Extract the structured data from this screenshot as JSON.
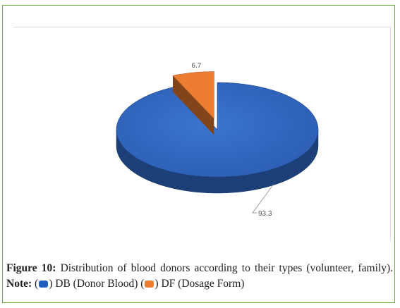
{
  "chart_data": {
    "type": "pie",
    "style": "3d",
    "categories": [
      "DB (Donor Blood)",
      "DF (Dosage Form)"
    ],
    "values": [
      93.3,
      6.7
    ],
    "data_labels": [
      "93.3",
      "6.7"
    ],
    "colors": [
      "#2f66c0",
      "#ed7d31"
    ],
    "exploded": [
      false,
      true
    ],
    "legend": "none",
    "grid": false
  },
  "caption": {
    "label": "Figure 10:",
    "text": "Distribution of blood donors according to their types (volunteer, family).",
    "note_label": "Note:",
    "open_paren": "(",
    "close_paren": ")",
    "series1": "DB (Donor Blood)",
    "series2": "DF (Dosage Form)"
  }
}
